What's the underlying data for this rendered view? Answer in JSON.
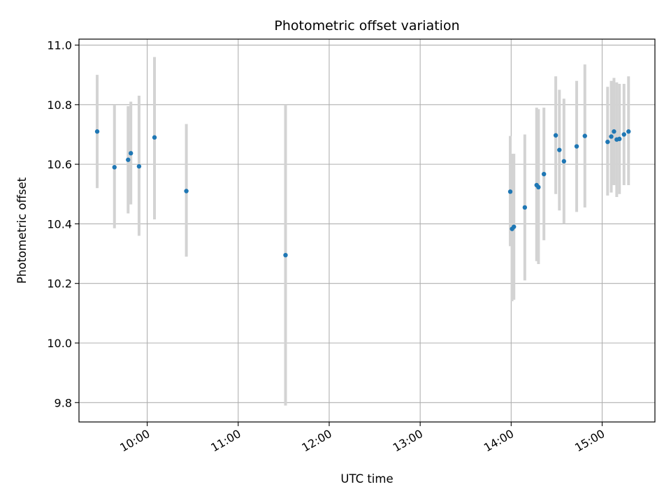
{
  "chart_data": {
    "type": "scatter",
    "title": "Photometric offset variation",
    "xlabel": "UTC time",
    "ylabel": "Photometric offset",
    "x_unit": "hours (UTC)",
    "xlim": [
      9.25,
      15.58
    ],
    "ylim": [
      9.735,
      11.02
    ],
    "grid": true,
    "y_ticks": [
      9.8,
      10.0,
      10.2,
      10.4,
      10.6,
      10.8,
      11.0
    ],
    "y_tick_labels": [
      "9.8",
      "10.0",
      "10.2",
      "10.4",
      "10.6",
      "10.8",
      "11.0"
    ],
    "x_ticks": [
      10,
      11,
      12,
      13,
      14,
      15
    ],
    "x_tick_labels": [
      "10:00",
      "11:00",
      "12:00",
      "13:00",
      "14:00",
      "15:00"
    ],
    "colors": {
      "point": "#1f77b4",
      "errorbar": "#d3d3d3",
      "grid": "#b0b0b0",
      "axes": "#000000"
    },
    "series": [
      {
        "name": "offset",
        "points": [
          {
            "x": 9.45,
            "y": 10.71,
            "lo": 10.52,
            "hi": 10.9
          },
          {
            "x": 9.64,
            "y": 10.59,
            "lo": 10.385,
            "hi": 10.8
          },
          {
            "x": 9.79,
            "y": 10.615,
            "lo": 10.435,
            "hi": 10.795
          },
          {
            "x": 9.82,
            "y": 10.637,
            "lo": 10.465,
            "hi": 10.81
          },
          {
            "x": 9.91,
            "y": 10.593,
            "lo": 10.36,
            "hi": 10.83
          },
          {
            "x": 10.08,
            "y": 10.69,
            "lo": 10.415,
            "hi": 10.96
          },
          {
            "x": 10.43,
            "y": 10.51,
            "lo": 10.29,
            "hi": 10.735
          },
          {
            "x": 11.52,
            "y": 10.295,
            "lo": 9.79,
            "hi": 10.8
          },
          {
            "x": 13.99,
            "y": 10.508,
            "lo": 10.325,
            "hi": 10.695
          },
          {
            "x": 14.01,
            "y": 10.383,
            "lo": 10.14,
            "hi": 10.635
          },
          {
            "x": 14.03,
            "y": 10.39,
            "lo": 10.145,
            "hi": 10.635
          },
          {
            "x": 14.15,
            "y": 10.455,
            "lo": 10.21,
            "hi": 10.7
          },
          {
            "x": 14.28,
            "y": 10.53,
            "lo": 10.275,
            "hi": 10.79
          },
          {
            "x": 14.3,
            "y": 10.523,
            "lo": 10.265,
            "hi": 10.785
          },
          {
            "x": 14.36,
            "y": 10.567,
            "lo": 10.345,
            "hi": 10.79
          },
          {
            "x": 14.49,
            "y": 10.697,
            "lo": 10.5,
            "hi": 10.895
          },
          {
            "x": 14.53,
            "y": 10.648,
            "lo": 10.445,
            "hi": 10.85
          },
          {
            "x": 14.58,
            "y": 10.61,
            "lo": 10.4,
            "hi": 10.82
          },
          {
            "x": 14.72,
            "y": 10.66,
            "lo": 10.44,
            "hi": 10.88
          },
          {
            "x": 14.81,
            "y": 10.695,
            "lo": 10.455,
            "hi": 10.935
          },
          {
            "x": 15.06,
            "y": 10.675,
            "lo": 10.495,
            "hi": 10.86
          },
          {
            "x": 15.1,
            "y": 10.693,
            "lo": 10.505,
            "hi": 10.88
          },
          {
            "x": 15.13,
            "y": 10.71,
            "lo": 10.53,
            "hi": 10.89
          },
          {
            "x": 15.16,
            "y": 10.683,
            "lo": 10.49,
            "hi": 10.875
          },
          {
            "x": 15.19,
            "y": 10.685,
            "lo": 10.5,
            "hi": 10.87
          },
          {
            "x": 15.24,
            "y": 10.7,
            "lo": 10.53,
            "hi": 10.87
          },
          {
            "x": 15.29,
            "y": 10.71,
            "lo": 10.53,
            "hi": 10.895
          }
        ]
      }
    ]
  }
}
